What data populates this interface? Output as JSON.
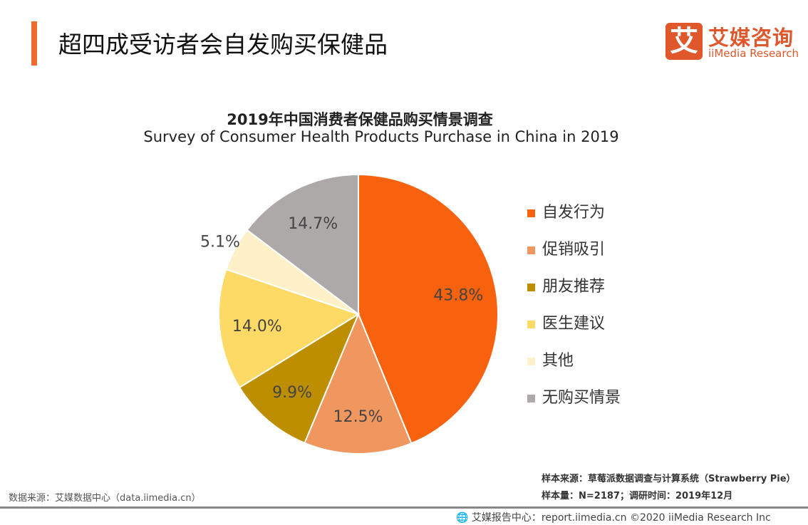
{
  "header": {
    "title": "超四成受访者会自发购买保健品",
    "logo_mark": "艾",
    "logo_cn": "艾媒咨询",
    "logo_en": "iiMedia Research"
  },
  "chart_data": {
    "type": "pie",
    "title": "2019年中国消费者保健品购买情景调查",
    "subtitle": "Survey of Consumer Health Products Purchase in China in 2019",
    "legend_position": "right",
    "start": "top, clockwise",
    "slices": [
      {
        "name": "自发行为",
        "value": 43.8,
        "label": "43.8%",
        "color": "#F8610E"
      },
      {
        "name": "促销吸引",
        "value": 12.5,
        "label": "12.5%",
        "color": "#F0965F"
      },
      {
        "name": "朋友推荐",
        "value": 9.9,
        "label": "9.9%",
        "color": "#BC8E00"
      },
      {
        "name": "医生建议",
        "value": 14.0,
        "label": "14.0%",
        "color": "#FDD966"
      },
      {
        "name": "其他",
        "value": 5.1,
        "label": "5.1%",
        "color": "#FEF0C8"
      },
      {
        "name": "无购买情景",
        "value": 14.7,
        "label": "14.7%",
        "color": "#ADA9A8"
      }
    ]
  },
  "footer": {
    "source": "数据来源：艾媒数据中心（data.iimedia.cn）",
    "sample_source": "样本来源：草莓派数据调查与计算系统（Strawberry Pie）",
    "sample_size": "样本量：N=2187；调研时间：2019年12月",
    "report": "艾媒报告中心：report.iimedia.cn ©2020  iiMedia Research Inc"
  }
}
